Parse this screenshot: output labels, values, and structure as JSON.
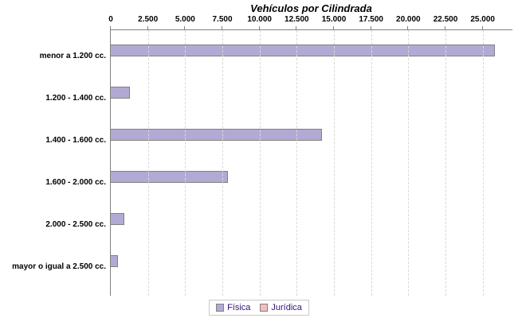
{
  "chart_data": {
    "type": "bar",
    "orientation": "horizontal",
    "title": "Vehículos por Cilindrada",
    "categories": [
      "menor a 1.200 cc.",
      "1.200 - 1.400 cc.",
      "1.400 - 1.600 cc.",
      "1.600 - 2.000 cc.",
      "2.000 - 2.500 cc.",
      "mayor o igual a 2.500 cc."
    ],
    "series": [
      {
        "name": "Física",
        "color": "#b2aad4",
        "values": [
          25800,
          1300,
          14200,
          7900,
          900,
          500
        ]
      },
      {
        "name": "Jurídica",
        "color": "#f8bcbc",
        "values": [
          0,
          0,
          0,
          0,
          0,
          0
        ]
      }
    ],
    "x_axis": {
      "min": 0,
      "max": 27000,
      "ticks": [
        {
          "value": 0,
          "label": "0"
        },
        {
          "value": 2500,
          "label": "2.500"
        },
        {
          "value": 5000,
          "label": "5.000"
        },
        {
          "value": 7500,
          "label": "7.500"
        },
        {
          "value": 10000,
          "label": "10.000"
        },
        {
          "value": 12500,
          "label": "12.500"
        },
        {
          "value": 15000,
          "label": "15.000"
        },
        {
          "value": 17500,
          "label": "17.500"
        },
        {
          "value": 20000,
          "label": "20.000"
        },
        {
          "value": 22500,
          "label": "22.500"
        },
        {
          "value": 25000,
          "label": "25.000"
        }
      ]
    },
    "grid": "vertical-dashed",
    "legend_position": "bottom-center"
  },
  "colors": {
    "bar_fisica": "#b2aad4",
    "bar_juridica": "#f8bcbc",
    "bar_border": "#808080",
    "axis_line": "#808080",
    "gridline": "#d8d8d8",
    "legend_text": "#32127a",
    "legend_border": "#c8c8c8",
    "title_text": "#000000"
  }
}
